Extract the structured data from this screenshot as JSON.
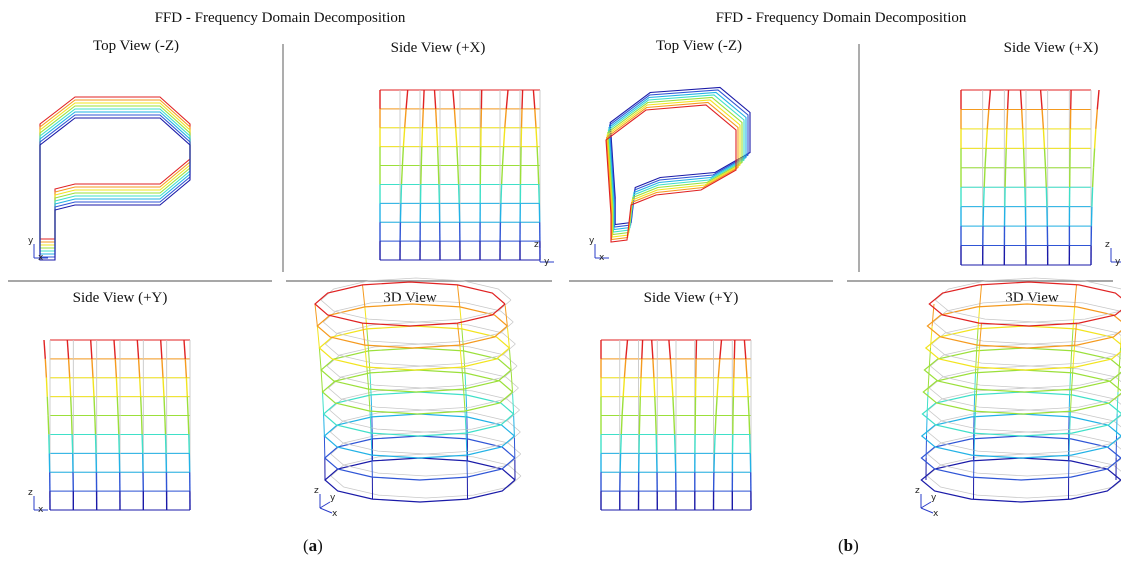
{
  "panels": [
    {
      "title": "FFD - Frequency Domain Decomposition",
      "caption_letter": "a",
      "views": {
        "top": "Top View (-Z)",
        "side_x": "Side View (+X)",
        "side_y": "Side View (+Y)",
        "view_3d": "3D View"
      }
    },
    {
      "title": "FFD - Frequency Domain Decomposition",
      "caption_letter": "b",
      "views": {
        "top": "Top View (-Z)",
        "side_x": "Side View (+X)",
        "side_y": "Side View (+Y)",
        "view_3d": "3D View"
      }
    }
  ],
  "axis_letters": {
    "x": "x",
    "y": "y",
    "z": "z"
  },
  "colors": {
    "ramp": [
      "#1a1aa8",
      "#2f55d6",
      "#22b2e6",
      "#3fe0c8",
      "#9be03a",
      "#f2e41e",
      "#f59a1e",
      "#e02222"
    ],
    "undeformed": "#c8c8c8",
    "separator": "#8a8a8a",
    "axis": "#2a3cc8"
  }
}
